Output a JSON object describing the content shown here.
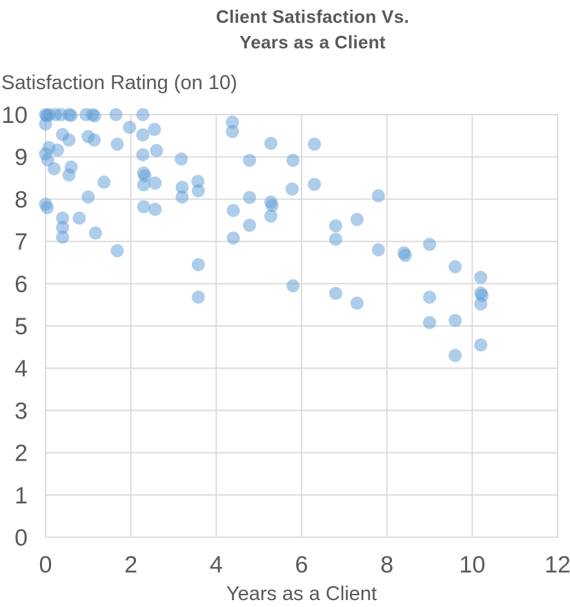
{
  "chart": {
    "title_line1": "Client Satisfaction Vs.",
    "title_line2": "Years as a Client",
    "y_axis_title": "Satisfaction Rating (on 10)",
    "x_axis_title": "Years as a Client"
  },
  "chart_data": {
    "type": "scatter",
    "title": "Client Satisfaction Vs. Years as a Client",
    "xlabel": "Years as a Client",
    "ylabel": "Satisfaction Rating (on 10)",
    "xlim": [
      0,
      12
    ],
    "ylim": [
      0,
      10
    ],
    "x_ticks": [
      0,
      2,
      4,
      6,
      8,
      10,
      12
    ],
    "y_ticks": [
      0,
      1,
      2,
      3,
      4,
      5,
      6,
      7,
      8,
      9,
      10
    ],
    "grid": true,
    "legend": "none",
    "grid_color": "#DCDCDC",
    "text_color": "#595959",
    "marker": {
      "color": "#5B9BD5",
      "opacity": 0.5,
      "radius": 9.5
    },
    "points": [
      [
        0,
        10
      ],
      [
        0.03,
        9.97
      ],
      [
        0.08,
        10
      ],
      [
        0.23,
        10
      ],
      [
        0.36,
        10
      ],
      [
        0.55,
        10
      ],
      [
        0.6,
        9.98
      ],
      [
        0.95,
        10
      ],
      [
        1.1,
        10
      ],
      [
        1.15,
        9.97
      ],
      [
        1.65,
        10
      ],
      [
        2.28,
        10
      ],
      [
        0,
        9.78
      ],
      [
        1.97,
        9.7
      ],
      [
        2.55,
        9.65
      ],
      [
        4.38,
        9.82
      ],
      [
        4.38,
        9.6
      ],
      [
        0.4,
        9.53
      ],
      [
        0.55,
        9.4
      ],
      [
        1.0,
        9.48
      ],
      [
        1.14,
        9.4
      ],
      [
        2.28,
        9.52
      ],
      [
        1.68,
        9.3
      ],
      [
        5.28,
        9.32
      ],
      [
        6.3,
        9.3
      ],
      [
        0.08,
        9.22
      ],
      [
        0.28,
        9.16
      ],
      [
        0,
        9.07
      ],
      [
        0.05,
        8.93
      ],
      [
        2.6,
        9.15
      ],
      [
        2.28,
        9.05
      ],
      [
        3.18,
        8.95
      ],
      [
        4.78,
        8.92
      ],
      [
        5.8,
        8.92
      ],
      [
        0.2,
        8.72
      ],
      [
        0.6,
        8.76
      ],
      [
        0.55,
        8.57
      ],
      [
        2.3,
        8.62
      ],
      [
        2.33,
        8.55
      ],
      [
        1.37,
        8.4
      ],
      [
        2.3,
        8.34
      ],
      [
        2.57,
        8.38
      ],
      [
        6.3,
        8.35
      ],
      [
        3.57,
        8.42
      ],
      [
        3.2,
        8.28
      ],
      [
        3.2,
        8.05
      ],
      [
        3.58,
        8.2
      ],
      [
        5.78,
        8.24
      ],
      [
        7.8,
        8.08
      ],
      [
        1.0,
        8.05
      ],
      [
        4.78,
        8.04
      ],
      [
        0,
        7.88
      ],
      [
        0.04,
        7.8
      ],
      [
        2.3,
        7.82
      ],
      [
        2.57,
        7.76
      ],
      [
        5.28,
        7.93
      ],
      [
        5.31,
        7.85
      ],
      [
        4.4,
        7.73
      ],
      [
        5.28,
        7.6
      ],
      [
        0.4,
        7.55
      ],
      [
        0.79,
        7.55
      ],
      [
        0.4,
        7.33
      ],
      [
        4.78,
        7.38
      ],
      [
        7.3,
        7.52
      ],
      [
        6.8,
        7.37
      ],
      [
        1.17,
        7.2
      ],
      [
        0.4,
        7.1
      ],
      [
        4.4,
        7.08
      ],
      [
        6.8,
        7.05
      ],
      [
        1.68,
        6.78
      ],
      [
        7.8,
        6.8
      ],
      [
        8.4,
        6.73
      ],
      [
        8.43,
        6.67
      ],
      [
        9.0,
        6.93
      ],
      [
        3.58,
        6.45
      ],
      [
        9.6,
        6.4
      ],
      [
        10.2,
        6.15
      ],
      [
        5.8,
        5.95
      ],
      [
        3.58,
        5.68
      ],
      [
        6.8,
        5.77
      ],
      [
        7.3,
        5.54
      ],
      [
        9.0,
        5.68
      ],
      [
        10.2,
        5.78
      ],
      [
        10.23,
        5.72
      ],
      [
        10.2,
        5.52
      ],
      [
        9.0,
        5.08
      ],
      [
        9.6,
        5.13
      ],
      [
        9.6,
        4.3
      ],
      [
        10.2,
        4.55
      ]
    ]
  }
}
